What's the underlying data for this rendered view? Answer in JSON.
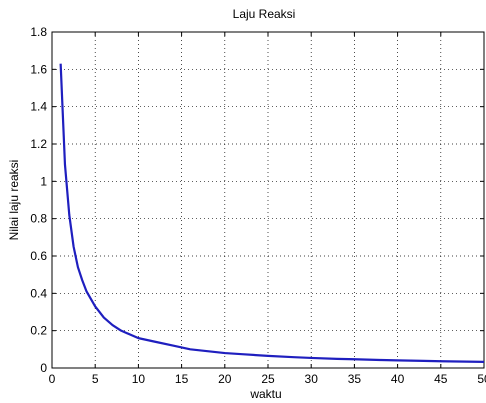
{
  "chart_data": {
    "type": "line",
    "title": "Laju Reaksi",
    "xlabel": "waktu",
    "ylabel": "Nilai laju reaksi",
    "xlim": [
      0,
      50
    ],
    "ylim": [
      0,
      1.8
    ],
    "grid": true,
    "x_ticks": [
      "0",
      "5",
      "10",
      "15",
      "20",
      "25",
      "30",
      "35",
      "40",
      "45",
      "50"
    ],
    "y_ticks": [
      "0",
      "0.2",
      "0.4",
      "0.6",
      "0.8",
      "1",
      "1.2",
      "1.4",
      "1.6",
      "1.8"
    ],
    "line_color": "#1f1fbf",
    "series": [
      {
        "x": [
          1,
          1.5,
          2,
          2.5,
          3,
          3.5,
          4,
          5,
          6,
          7,
          8,
          9,
          10,
          12,
          14,
          16,
          18,
          20,
          22,
          25,
          28,
          30,
          33,
          35,
          38,
          40,
          43,
          45,
          48,
          50
        ],
        "values": [
          1.63,
          1.09,
          0.82,
          0.65,
          0.54,
          0.47,
          0.41,
          0.33,
          0.27,
          0.23,
          0.2,
          0.18,
          0.16,
          0.14,
          0.12,
          0.1,
          0.09,
          0.08,
          0.074,
          0.065,
          0.058,
          0.054,
          0.049,
          0.047,
          0.043,
          0.041,
          0.038,
          0.036,
          0.034,
          0.033
        ]
      }
    ]
  }
}
